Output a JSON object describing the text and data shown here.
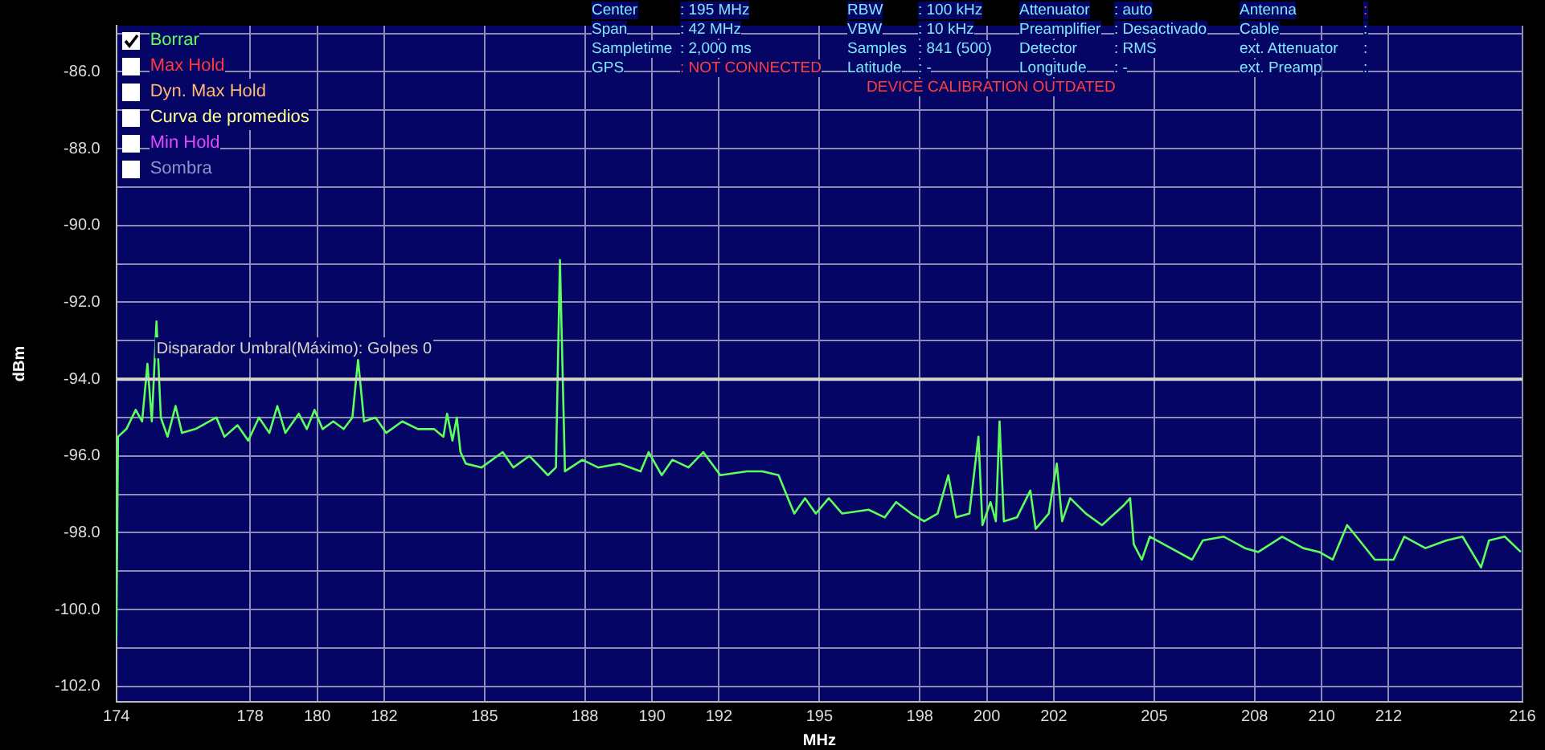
{
  "chart_data": {
    "type": "line",
    "xlabel": "MHz",
    "ylabel": "dBm",
    "xlim": [
      174,
      216
    ],
    "ylim": [
      -102.4,
      -84.8
    ],
    "xticks": [
      174,
      178,
      180,
      182,
      185,
      188,
      190,
      192,
      195,
      198,
      200,
      202,
      205,
      208,
      210,
      212,
      216
    ],
    "yticks": [
      {
        "value": -102,
        "label": "-102.0"
      },
      {
        "value": -101,
        "label": null
      },
      {
        "value": -100,
        "label": "-100.0"
      },
      {
        "value": -99,
        "label": null
      },
      {
        "value": -98,
        "label": "-98.0"
      },
      {
        "value": -97,
        "label": null
      },
      {
        "value": -96,
        "label": "-96.0"
      },
      {
        "value": -95,
        "label": null
      },
      {
        "value": -94,
        "label": "-94.0"
      },
      {
        "value": -93,
        "label": null
      },
      {
        "value": -92,
        "label": "-92.0"
      },
      {
        "value": -91,
        "label": null
      },
      {
        "value": -90,
        "label": "-90.0"
      },
      {
        "value": -89,
        "label": null
      },
      {
        "value": -88,
        "label": "-88.0"
      },
      {
        "value": -87,
        "label": null
      },
      {
        "value": -86,
        "label": "-86.0"
      },
      {
        "value": -85,
        "label": null
      }
    ],
    "grid": true,
    "legend": "top left",
    "marker": "none",
    "line_style": "solid",
    "series": [
      {
        "name": "Borrar",
        "color": "#5cff5c",
        "x": [
          174.0,
          174.05,
          174.3,
          174.58,
          174.77,
          174.93,
          175.06,
          175.2,
          175.33,
          175.53,
          175.77,
          175.96,
          176.36,
          176.99,
          177.23,
          177.62,
          177.94,
          178.26,
          178.57,
          178.81,
          179.05,
          179.45,
          179.69,
          179.92,
          180.16,
          180.48,
          180.79,
          181.05,
          181.22,
          181.4,
          181.74,
          182.06,
          182.54,
          183.01,
          183.49,
          183.77,
          183.88,
          184.04,
          184.17,
          184.28,
          184.44,
          184.91,
          185.54,
          185.86,
          186.34,
          186.89,
          187.13,
          187.25,
          187.4,
          187.92,
          188.39,
          189.03,
          189.66,
          189.9,
          190.29,
          190.61,
          191.09,
          191.53,
          192.04,
          192.83,
          193.3,
          193.78,
          194.06,
          194.25,
          194.57,
          194.89,
          195.28,
          195.68,
          196.47,
          196.95,
          197.29,
          197.74,
          198.13,
          198.53,
          198.85,
          199.08,
          199.48,
          199.75,
          199.87,
          200.11,
          200.27,
          200.38,
          200.51,
          200.9,
          201.3,
          201.46,
          201.85,
          202.09,
          202.25,
          202.49,
          202.96,
          203.44,
          204.07,
          204.28,
          204.39,
          204.63,
          204.87,
          205.5,
          206.13,
          206.45,
          207.08,
          207.71,
          208.11,
          208.82,
          209.45,
          209.93,
          210.33,
          210.76,
          211.04,
          211.59,
          212.15,
          212.47,
          213.1,
          213.73,
          214.21,
          214.76,
          215.0,
          215.47,
          215.95
        ],
        "values": [
          -100.8,
          -95.5,
          -95.3,
          -94.8,
          -95.1,
          -93.6,
          -95.1,
          -92.5,
          -95.0,
          -95.5,
          -94.7,
          -95.4,
          -95.3,
          -95.0,
          -95.5,
          -95.2,
          -95.6,
          -95.0,
          -95.4,
          -94.7,
          -95.4,
          -94.9,
          -95.3,
          -94.8,
          -95.3,
          -95.1,
          -95.3,
          -95.0,
          -93.5,
          -95.1,
          -95.0,
          -95.4,
          -95.1,
          -95.3,
          -95.3,
          -95.5,
          -94.9,
          -95.6,
          -95.0,
          -95.9,
          -96.2,
          -96.3,
          -95.9,
          -96.3,
          -96.0,
          -96.5,
          -96.3,
          -90.9,
          -96.4,
          -96.1,
          -96.3,
          -96.2,
          -96.4,
          -95.9,
          -96.5,
          -96.1,
          -96.3,
          -95.9,
          -96.5,
          -96.4,
          -96.4,
          -96.5,
          -97.1,
          -97.5,
          -97.1,
          -97.5,
          -97.1,
          -97.5,
          -97.4,
          -97.6,
          -97.2,
          -97.5,
          -97.7,
          -97.5,
          -96.5,
          -97.6,
          -97.5,
          -95.5,
          -97.8,
          -97.2,
          -97.7,
          -95.1,
          -97.7,
          -97.6,
          -96.9,
          -97.9,
          -97.5,
          -96.2,
          -97.7,
          -97.1,
          -97.5,
          -97.8,
          -97.3,
          -97.1,
          -98.3,
          -98.7,
          -98.1,
          -98.4,
          -98.7,
          -98.2,
          -98.1,
          -98.4,
          -98.5,
          -98.1,
          -98.4,
          -98.5,
          -98.7,
          -97.8,
          -98.1,
          -98.7,
          -98.7,
          -98.1,
          -98.4,
          -98.2,
          -98.1,
          -98.9,
          -98.2,
          -98.1,
          -98.5
        ]
      }
    ],
    "ref_lines": [
      {
        "axis": "y",
        "value": -94,
        "label": "Disparador Umbral(Máximo): Golpes 0",
        "color": "#d8d8c8"
      }
    ],
    "annotations": [
      "Center",
      ": 195 MHz",
      "RBW",
      ": 100 kHz",
      "Attenuator",
      ": auto",
      "Antenna",
      ":",
      "Span",
      ": 42 MHz",
      "VBW",
      ": 10 kHz",
      "Preamplifier",
      ": Desactivado",
      "Cable",
      ":",
      "Sampletime",
      ": 2,000 ms",
      "Samples",
      ": 841 (500)",
      "Detector",
      ": RMS",
      "ext. Attenuator",
      ":",
      "GPS",
      ": NOT CONNECTED",
      "Latitude",
      ": -",
      "Longitude",
      ": -",
      "ext. Preamp",
      ":",
      "DEVICE CALIBRATION OUTDATED",
      "Max Hold",
      "Dyn. Max Hold",
      "Curva de promedios",
      "Min Hold",
      "Sombra"
    ]
  }
}
